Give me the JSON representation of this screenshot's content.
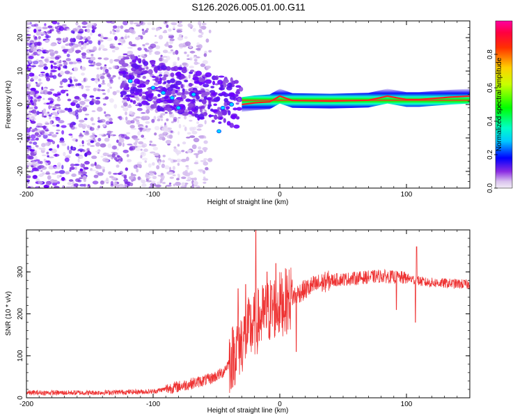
{
  "figure": {
    "title": "S126.2026.005.01.00.G11"
  },
  "chart_data": [
    {
      "type": "heatmap",
      "title": "S126.2026.005.01.00.G11",
      "xlabel": "Height of straight line (km)",
      "ylabel": "Frequency (Hz)",
      "xlim": [
        -200,
        150
      ],
      "ylim": [
        -25,
        25
      ],
      "xticks": [
        -200,
        -100,
        0,
        100
      ],
      "yticks": [
        -20,
        -10,
        0,
        10,
        20
      ],
      "colorbar": {
        "label": "Normalized spectral amplitude",
        "range": [
          0,
          1
        ],
        "ticks": [
          0.0,
          0.2,
          0.4,
          0.6,
          0.8
        ],
        "colormap": "rainbow (magenta-blue-cyan-green-yellow-red-pink)"
      },
      "features": {
        "noise_region_km": [
          -200,
          -30
        ],
        "scintillation_region_km": [
          -120,
          -30
        ],
        "carrier_line_start_km": -30,
        "carrier_ridge": [
          {
            "x": -30,
            "f": 0.0
          },
          {
            "x": -20,
            "f": 0.5
          },
          {
            "x": -8,
            "f": 0.8
          },
          {
            "x": 0,
            "f": 2.5
          },
          {
            "x": 10,
            "f": 1.2
          },
          {
            "x": 40,
            "f": 1.0
          },
          {
            "x": 70,
            "f": 1.3
          },
          {
            "x": 85,
            "f": 2.5
          },
          {
            "x": 100,
            "f": 1.5
          },
          {
            "x": 110,
            "f": 1.5
          },
          {
            "x": 135,
            "f": 2.2
          },
          {
            "x": 150,
            "f": 2.5
          }
        ]
      }
    },
    {
      "type": "line",
      "xlabel": "Height of straight line (km)",
      "ylabel": "SNR (10 * v/v)",
      "xlim": [
        -200,
        150
      ],
      "ylim": [
        0,
        400
      ],
      "xticks": [
        -200,
        -100,
        0,
        100
      ],
      "yticks": [
        0,
        100,
        200,
        300
      ],
      "series": [
        {
          "name": "SNR",
          "color": "#ee3333",
          "profile": [
            {
              "x": -200,
              "y": 12
            },
            {
              "x": -150,
              "y": 12
            },
            {
              "x": -100,
              "y": 15
            },
            {
              "x": -75,
              "y": 30
            },
            {
              "x": -55,
              "y": 45
            },
            {
              "x": -45,
              "y": 60
            },
            {
              "x": -35,
              "y": 110
            },
            {
              "x": -25,
              "y": 160
            },
            {
              "x": -15,
              "y": 190
            },
            {
              "x": -5,
              "y": 215
            },
            {
              "x": 5,
              "y": 230
            },
            {
              "x": 15,
              "y": 250
            },
            {
              "x": 25,
              "y": 265
            },
            {
              "x": 40,
              "y": 280
            },
            {
              "x": 60,
              "y": 285
            },
            {
              "x": 80,
              "y": 290
            },
            {
              "x": 100,
              "y": 285
            },
            {
              "x": 115,
              "y": 275
            },
            {
              "x": 150,
              "y": 270
            }
          ],
          "spikes": [
            {
              "x": -19,
              "y": 400
            },
            {
              "x": -27,
              "y": 270
            },
            {
              "x": -33,
              "y": 260
            },
            {
              "x": -10,
              "y": 300
            },
            {
              "x": -3,
              "y": 320
            },
            {
              "x": 108,
              "y": 360
            },
            {
              "x": 107,
              "y": 180
            },
            {
              "x": 92,
              "y": 210
            },
            {
              "x": 13,
              "y": 110
            }
          ]
        }
      ]
    }
  ]
}
